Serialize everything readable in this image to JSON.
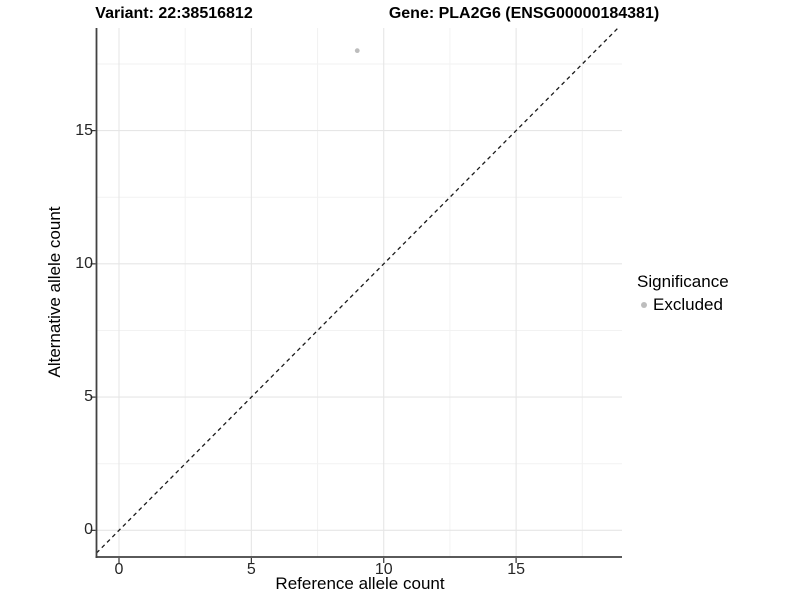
{
  "chart_data": {
    "type": "scatter",
    "titles": [
      "Variant: 22:38516812",
      "Gene: PLA2G6 (ENSG00000184381)"
    ],
    "xlabel": "Reference allele count",
    "ylabel": "Alternative allele count",
    "xlim": [
      -0.85,
      19.0
    ],
    "ylim": [
      -1.0,
      18.85
    ],
    "x_ticks": [
      0,
      5,
      10,
      15
    ],
    "y_ticks": [
      0,
      5,
      10,
      15
    ],
    "x_minor_ticks": [
      2.5,
      7.5,
      12.5,
      17.5
    ],
    "y_minor_ticks": [
      2.5,
      7.5,
      12.5,
      17.5
    ],
    "grid": true,
    "legend_position": "right",
    "identity_line": {
      "slope": 1,
      "intercept": 0,
      "style": "dashed",
      "color": "#1a1a1a"
    },
    "series": [
      {
        "name": "Excluded",
        "color": "#bdbdbd",
        "points": [
          {
            "x": 9,
            "y": 18
          }
        ]
      }
    ],
    "legend": {
      "title": "Significance",
      "items": [
        {
          "label": "Excluded",
          "color": "#bdbdbd",
          "marker": "dot-icon"
        }
      ]
    },
    "colors": {
      "grid_major": "#e6e6e6",
      "grid_minor": "#f2f2f2",
      "axis_line": "#424242",
      "tick_mark": "#333333",
      "tick_text": "#262626"
    }
  }
}
